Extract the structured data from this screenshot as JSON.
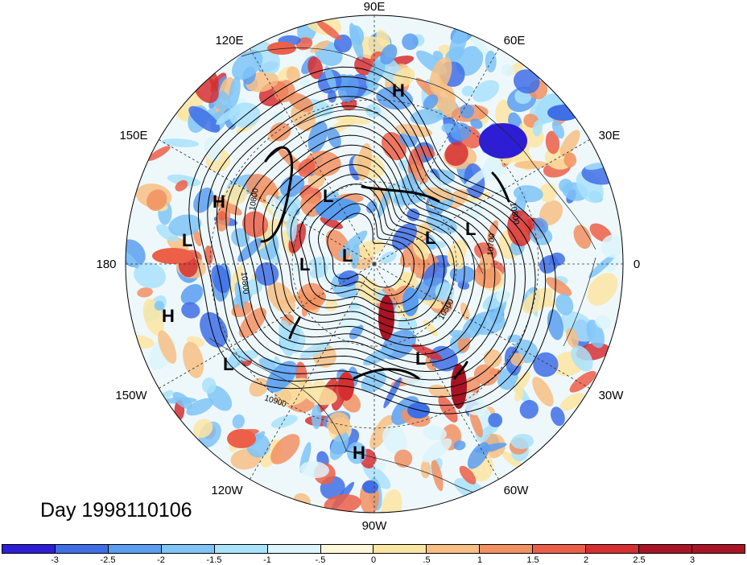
{
  "title": "Day 1998110106",
  "longitude_labels": [
    "90E",
    "60E",
    "30E",
    "0",
    "30W",
    "60W",
    "90W",
    "120W",
    "150W",
    "180",
    "150E",
    "120E"
  ],
  "pressure_centers": [
    "H",
    "L",
    "L",
    "L",
    "L",
    "L",
    "H",
    "L",
    "H",
    "L",
    "L",
    "H"
  ],
  "contour_labels": [
    "10800",
    "10800",
    "10800",
    "10500",
    "10700",
    "10900"
  ],
  "colorbar": {
    "tick_labels": [
      "-3",
      "-2.5",
      "-2",
      "-1.5",
      "-1",
      "-.5",
      "0",
      ".5",
      "1",
      "1.5",
      "2",
      "2.5",
      "3"
    ],
    "colors": [
      "#2d1ed6",
      "#3f6fe6",
      "#5a9ef0",
      "#7fc4f7",
      "#a9e2fb",
      "#dcf4fc",
      "#fdf9d8",
      "#fbe5a2",
      "#f7bf84",
      "#f29162",
      "#ec5f48",
      "#d62f31",
      "#a81424",
      "#a81424"
    ]
  }
}
